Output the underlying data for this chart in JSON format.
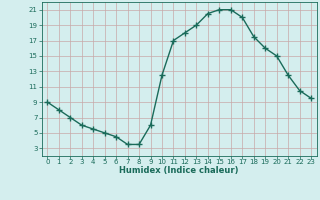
{
  "x": [
    0,
    1,
    2,
    3,
    4,
    5,
    6,
    7,
    8,
    9,
    10,
    11,
    12,
    13,
    14,
    15,
    16,
    17,
    18,
    19,
    20,
    21,
    22,
    23
  ],
  "y": [
    9,
    8,
    7,
    6,
    5.5,
    5,
    4.5,
    3.5,
    3.5,
    6,
    12.5,
    17,
    18,
    19,
    20.5,
    21,
    21,
    20,
    17.5,
    16,
    15,
    12.5,
    10.5,
    9.5
  ],
  "xlabel": "Humidex (Indice chaleur)",
  "xlim": [
    -0.5,
    23.5
  ],
  "ylim": [
    2,
    22
  ],
  "yticks": [
    3,
    5,
    7,
    9,
    11,
    13,
    15,
    17,
    19,
    21
  ],
  "xticks": [
    0,
    1,
    2,
    3,
    4,
    5,
    6,
    7,
    8,
    9,
    10,
    11,
    12,
    13,
    14,
    15,
    16,
    17,
    18,
    19,
    20,
    21,
    22,
    23
  ],
  "line_color": "#1a6b5a",
  "marker": "+",
  "marker_size": 4,
  "bg_color": "#d4eeee",
  "grid_color": "#c8a8a8",
  "line_width": 1.0,
  "tick_color": "#1a6b5a",
  "xlabel_fontsize": 6,
  "tick_fontsize": 5
}
